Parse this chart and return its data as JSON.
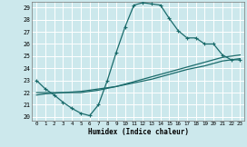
{
  "xlabel": "Humidex (Indice chaleur)",
  "bg_color": "#cce8ec",
  "grid_color": "#ffffff",
  "line_color": "#1a6b6b",
  "xlim": [
    -0.5,
    23.5
  ],
  "ylim": [
    19.7,
    29.5
  ],
  "xticks": [
    0,
    1,
    2,
    3,
    4,
    5,
    6,
    7,
    8,
    9,
    10,
    11,
    12,
    13,
    14,
    15,
    16,
    17,
    18,
    19,
    20,
    21,
    22,
    23
  ],
  "yticks": [
    20,
    21,
    22,
    23,
    24,
    25,
    26,
    27,
    28,
    29
  ],
  "line1_x": [
    0,
    1,
    2,
    3,
    4,
    5,
    6,
    7,
    8,
    9,
    10,
    11,
    12,
    13,
    14,
    15,
    16,
    17,
    18,
    19,
    20,
    21,
    22,
    23
  ],
  "line1_y": [
    23.0,
    22.3,
    21.8,
    21.2,
    20.7,
    20.3,
    20.1,
    21.0,
    23.0,
    25.3,
    27.4,
    29.2,
    29.4,
    29.3,
    29.2,
    28.1,
    27.1,
    26.5,
    26.5,
    26.0,
    26.0,
    25.1,
    24.7,
    24.7
  ],
  "line2_x": [
    0,
    1,
    3,
    5,
    7,
    9,
    11,
    13,
    15,
    17,
    19,
    21,
    23
  ],
  "line2_y": [
    22.0,
    22.0,
    22.0,
    22.0,
    22.2,
    22.5,
    22.9,
    23.3,
    23.7,
    24.1,
    24.5,
    24.9,
    25.1
  ],
  "line3_x": [
    0,
    1,
    3,
    5,
    7,
    9,
    11,
    13,
    15,
    17,
    19,
    21,
    23
  ],
  "line3_y": [
    21.8,
    21.9,
    22.0,
    22.1,
    22.3,
    22.5,
    22.8,
    23.1,
    23.5,
    23.9,
    24.2,
    24.6,
    24.8
  ],
  "marker": "+",
  "lw": 0.9,
  "ms": 3.5
}
